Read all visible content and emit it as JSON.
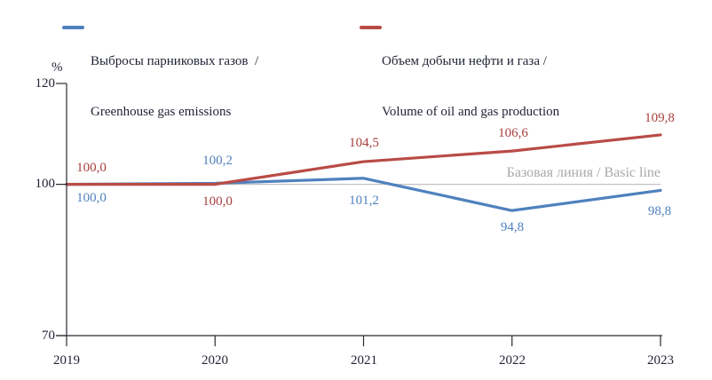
{
  "colors": {
    "blue": "#4f81bd",
    "blue_label": "#4f81bd",
    "red": "#b94b47",
    "red_label": "#a63f3b",
    "gray_line": "#c3c3c3",
    "gray_text": "#a9a9a9",
    "axis_line": "#2a2a33",
    "axis_text": "#1f2233"
  },
  "legend": {
    "items": [
      {
        "line1": "Выбросы парниковых газов  /",
        "line2": "Greenhouse gas emissions",
        "color": "#4f81bd"
      },
      {
        "line1": "Объем добычи нефти и газа /",
        "line2": "Volume of oil and gas production",
        "color": "#b94b47"
      }
    ]
  },
  "axis": {
    "unit_label": "%",
    "y_ticks": [
      "120",
      "100",
      "70"
    ],
    "x_ticks": [
      "2019",
      "2020",
      "2021",
      "2022",
      "2023"
    ]
  },
  "baseline_label": "Базовая линия / Basic line",
  "chart_data": {
    "type": "line",
    "categories": [
      "2019",
      "2020",
      "2021",
      "2022",
      "2023"
    ],
    "series": [
      {
        "name": "Выбросы парниковых газов / Greenhouse gas emissions",
        "values": [
          100.0,
          100.2,
          101.2,
          94.8,
          98.8
        ],
        "labels": [
          "100,0",
          "100,2",
          "101,2",
          "94,8",
          "98,8"
        ],
        "color": "#4f81bd"
      },
      {
        "name": "Объем добычи нефти и газа / Volume of oil and gas production",
        "values": [
          100.0,
          100.0,
          104.5,
          106.6,
          109.8
        ],
        "labels": [
          "100,0",
          "100,0",
          "104,5",
          "106,6",
          "109,8"
        ],
        "color": "#b94b47"
      }
    ],
    "baseline": 100,
    "baseline_label": "Базовая линия / Basic line",
    "ylim": [
      70,
      120
    ],
    "ylabel": "%",
    "grid": false,
    "legend_position": "top"
  }
}
